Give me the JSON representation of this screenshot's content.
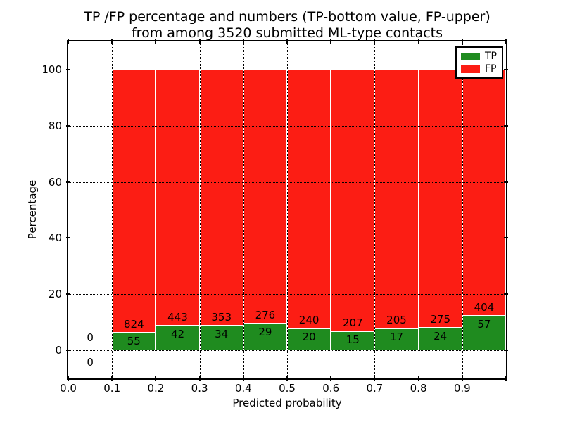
{
  "figure": {
    "title_line1": "TP /FP percentage and numbers (TP-bottom value, FP-upper)",
    "title_line2": "from among 3520 submitted ML-type contacts",
    "xlabel": "Predicted probability",
    "ylabel": "Percentage"
  },
  "legend": {
    "items": [
      {
        "label": "TP",
        "color": "#1f8b1f"
      },
      {
        "label": "FP",
        "color": "#fc1d14"
      }
    ]
  },
  "colors": {
    "tp": "#1f8b1f",
    "fp": "#fc1d14",
    "edge": "#ffffff",
    "axis": "#000000",
    "background": "#ffffff",
    "text": "#000000"
  },
  "chart_data": {
    "type": "bar",
    "stacked": true,
    "normalized": "each 0.1 probability bin scaled to 100%",
    "title": "TP /FP percentage and numbers (TP-bottom value, FP-upper) from among 3520 submitted ML-type contacts",
    "xlabel": "Predicted probability",
    "ylabel": "Percentage",
    "total_contacts": 3520,
    "xlim": [
      0.0,
      1.0
    ],
    "ylim": [
      -8.5,
      110
    ],
    "grid": "dotted black, on",
    "legend_position": "upper right",
    "xticks": [
      "0.0",
      "0.1",
      "0.2",
      "0.3",
      "0.4",
      "0.5",
      "0.6",
      "0.7",
      "0.8",
      "0.9"
    ],
    "yticks": [
      "0",
      "20",
      "40",
      "60",
      "80",
      "100"
    ],
    "series": [
      {
        "name": "TP",
        "color": "#1f8b1f",
        "position": "bottom"
      },
      {
        "name": "FP",
        "color": "#fc1d14",
        "position": "top"
      }
    ],
    "bins": [
      {
        "range": [
          0.0,
          0.1
        ],
        "tp": 0,
        "fp": 0
      },
      {
        "range": [
          0.1,
          0.2
        ],
        "tp": 55,
        "fp": 824
      },
      {
        "range": [
          0.2,
          0.3
        ],
        "tp": 42,
        "fp": 443
      },
      {
        "range": [
          0.3,
          0.4
        ],
        "tp": 34,
        "fp": 353
      },
      {
        "range": [
          0.4,
          0.5
        ],
        "tp": 29,
        "fp": 276
      },
      {
        "range": [
          0.5,
          0.6
        ],
        "tp": 20,
        "fp": 240
      },
      {
        "range": [
          0.6,
          0.7
        ],
        "tp": 15,
        "fp": 207
      },
      {
        "range": [
          0.7,
          0.8
        ],
        "tp": 17,
        "fp": 205
      },
      {
        "range": [
          0.8,
          0.9
        ],
        "tp": 24,
        "fp": 275
      },
      {
        "range": [
          0.9,
          1.0
        ],
        "tp": 57,
        "fp": 404
      }
    ]
  }
}
